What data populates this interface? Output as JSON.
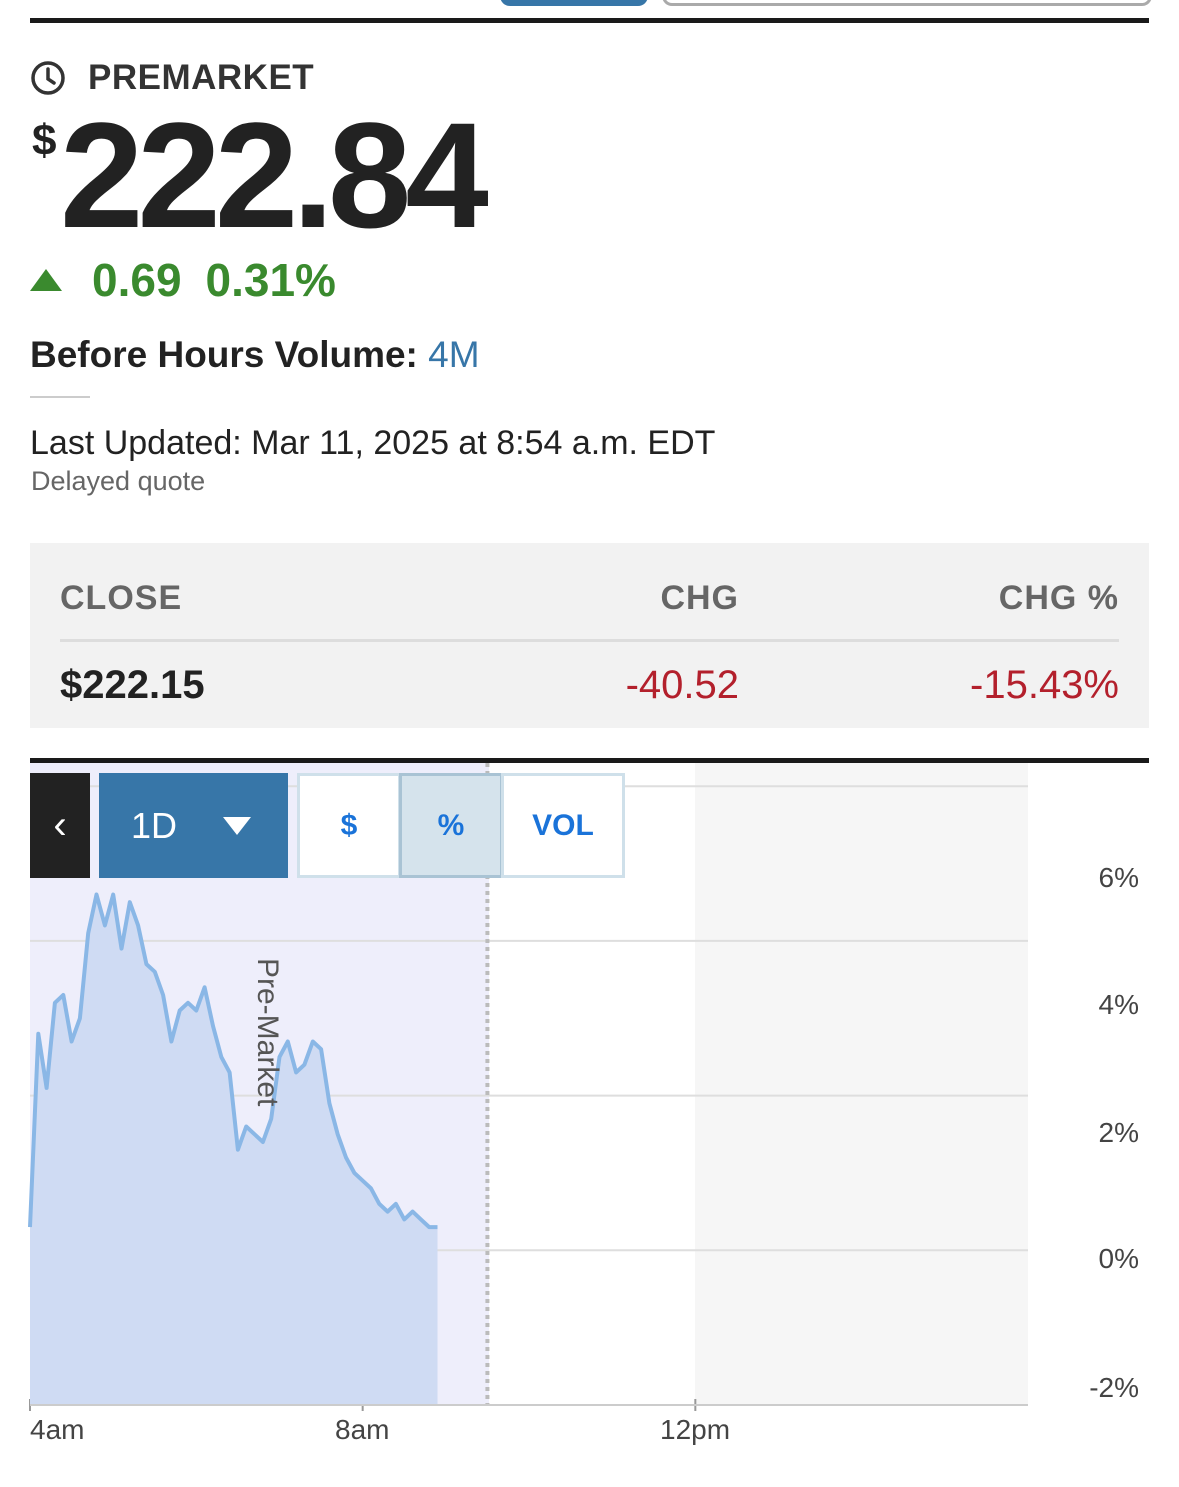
{
  "session": {
    "label": "PREMARKET",
    "icon": "clock-icon"
  },
  "quote": {
    "currency": "$",
    "price": "222.84",
    "change": "0.69",
    "change_pct": "0.31%",
    "direction_icon": "triangle-up-icon",
    "volume_label": "Before Hours Volume:",
    "volume_value": "4M",
    "last_updated": "Last Updated: Mar 11, 2025 at 8:54 a.m. EDT",
    "delayed": "Delayed quote",
    "colors": {
      "up": "#3a8a2e",
      "down": "#b3202c",
      "accent": "#3776a8"
    }
  },
  "close_table": {
    "headers": [
      "CLOSE",
      "CHG",
      "CHG %"
    ],
    "values": [
      "$222.15",
      "-40.52",
      "-15.43%"
    ]
  },
  "chart_controls": {
    "back_label": "‹",
    "range_label": "1D",
    "toggles": [
      "$",
      "%",
      "VOL"
    ],
    "selected_toggle": "%"
  },
  "chart_data": {
    "type": "area",
    "x_tick_labels": [
      "4am",
      "8am",
      "12pm"
    ],
    "y_tick_labels": [
      "6%",
      "4%",
      "2%",
      "0%",
      "-2%"
    ],
    "yticks": [
      6,
      4,
      2,
      0,
      -2
    ],
    "ylim": [
      -2,
      6.3
    ],
    "xlim_hours": [
      4,
      16
    ],
    "session_label": "Pre-Market",
    "premarket_end_hour": 9.5,
    "grid": true,
    "series": [
      {
        "x": [
          4.0,
          4.1,
          4.2,
          4.3,
          4.4,
          4.5,
          4.6,
          4.7,
          4.8,
          4.9,
          5.0,
          5.1,
          5.2,
          5.3,
          5.4,
          5.5,
          5.6,
          5.7,
          5.8,
          5.9,
          6.0,
          6.1,
          6.2,
          6.3,
          6.4,
          6.5,
          6.6,
          6.7,
          6.8,
          6.9,
          7.0,
          7.1,
          7.2,
          7.3,
          7.4,
          7.5,
          7.6,
          7.7,
          7.8,
          7.9,
          8.0,
          8.1,
          8.2,
          8.3,
          8.4,
          8.5,
          8.6,
          8.7,
          8.8,
          8.9
        ],
        "values": [
          0.3,
          2.8,
          2.1,
          3.2,
          3.3,
          2.7,
          3.0,
          4.1,
          4.6,
          4.2,
          4.6,
          3.9,
          4.5,
          4.2,
          3.7,
          3.6,
          3.3,
          2.7,
          3.1,
          3.2,
          3.1,
          3.4,
          2.9,
          2.5,
          2.3,
          1.3,
          1.6,
          1.5,
          1.4,
          1.7,
          2.5,
          2.7,
          2.3,
          2.4,
          2.7,
          2.6,
          1.9,
          1.5,
          1.2,
          1.0,
          0.9,
          0.8,
          0.6,
          0.5,
          0.6,
          0.4,
          0.5,
          0.4,
          0.3,
          0.3
        ]
      }
    ],
    "colors": {
      "line": "#8ab7e6",
      "fill": "#cfdbf3",
      "premarket_bg": "#eeeefb",
      "after_bg": "#f6f6f6"
    }
  }
}
